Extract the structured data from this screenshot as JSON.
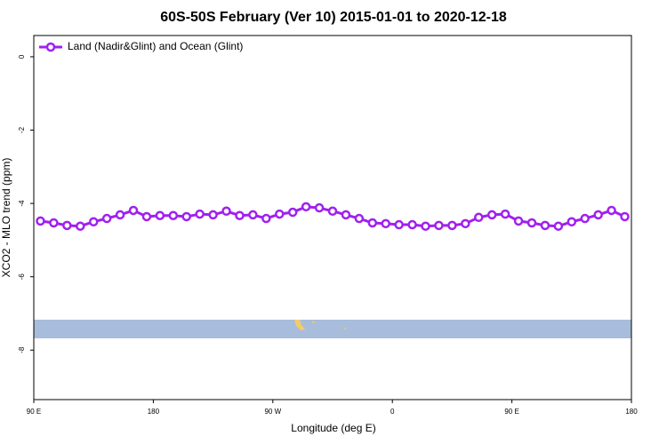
{
  "chart_data": {
    "type": "line",
    "title": "60S-50S February (Ver 10)   2015-01-01 to 2020-12-18",
    "x_label": "Longitude (deg E)",
    "y_label": "XCO2 - MLO trend (ppm)",
    "x": [
      95,
      105,
      115,
      125,
      135,
      145,
      155,
      165,
      175,
      185,
      195,
      205,
      215,
      225,
      235,
      245,
      255,
      265,
      275,
      285,
      295,
      305,
      315,
      325,
      335,
      345,
      355,
      365,
      375,
      385,
      395,
      405,
      415,
      425,
      435,
      445,
      455,
      465,
      475,
      485,
      495,
      505,
      515,
      525,
      535
    ],
    "series": [
      {
        "name": "Land (Nadir&Glint) and Ocean (Glint)",
        "color": "#a020f0",
        "values": [
          -4.48,
          -4.53,
          -4.6,
          -4.62,
          -4.5,
          -4.41,
          -4.31,
          -4.19,
          -4.36,
          -4.33,
          -4.33,
          -4.36,
          -4.29,
          -4.31,
          -4.21,
          -4.33,
          -4.31,
          -4.41,
          -4.29,
          -4.24,
          -4.09,
          -4.12,
          -4.21,
          -4.31,
          -4.41,
          -4.53,
          -4.55,
          -4.58,
          -4.58,
          -4.62,
          -4.6,
          -4.6,
          -4.55,
          -4.38,
          -4.31,
          -4.29,
          -4.48,
          -4.53,
          -4.6,
          -4.62,
          -4.5,
          -4.41,
          -4.31,
          -4.19,
          -4.36
        ]
      }
    ],
    "xlim": [
      90,
      540
    ],
    "ylim": [
      -9.35,
      0.58
    ],
    "xticks": [
      {
        "value": 90,
        "label": "90 E"
      },
      180,
      {
        "value": 270,
        "label": "90 W"
      },
      {
        "value": 360,
        "label": "0"
      },
      {
        "value": 450,
        "label": "90 E"
      },
      {
        "value": 540,
        "label": "180"
      }
    ],
    "yticks": [
      0,
      -2,
      -4,
      -6,
      -8
    ],
    "legend": "top-left"
  }
}
